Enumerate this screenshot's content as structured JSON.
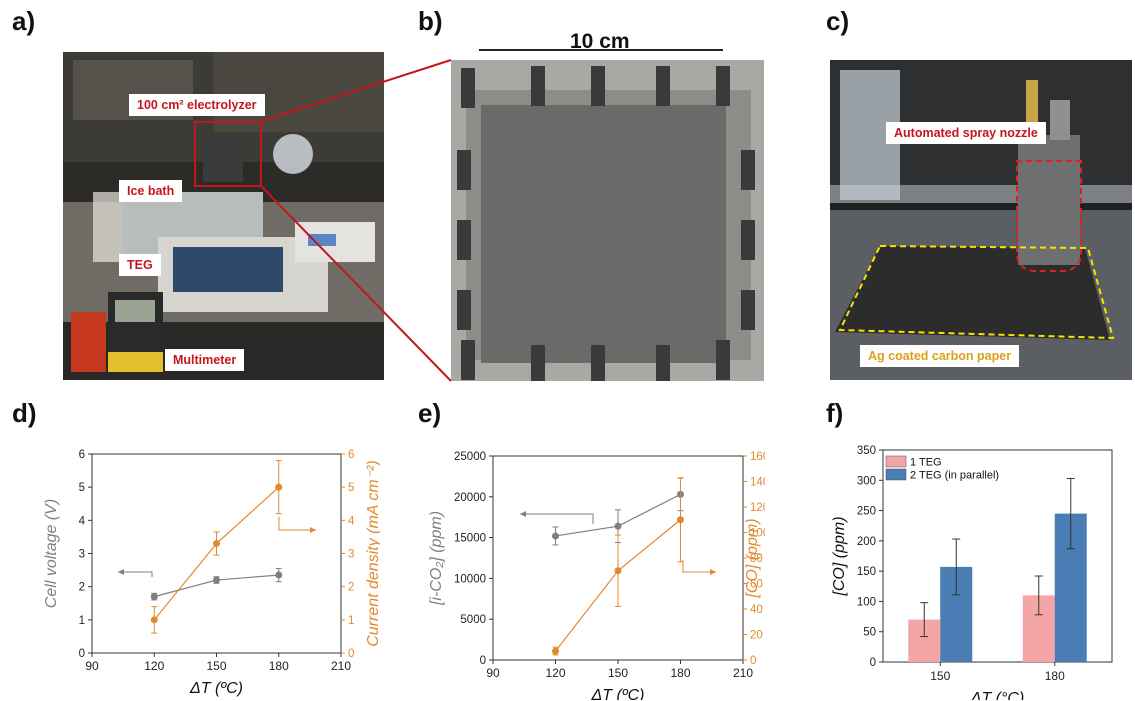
{
  "figure": {
    "panel_labels": [
      "a)",
      "b)",
      "c)",
      "d)",
      "e)",
      "f)"
    ],
    "colors": {
      "annotation_red": "#c4161c",
      "gray_series": "#7f7f7f",
      "orange_series": "#e08a2c",
      "bar_pink": "#f4a6a6",
      "bar_blue": "#4a7db4",
      "nozzle_outline": "#e02020",
      "paper_outline": "#f4e400"
    }
  },
  "photo_a": {
    "labels": [
      "100 cm² electrolyzer",
      "Ice bath",
      "TEG",
      "Multimeter"
    ]
  },
  "photo_b": {
    "scale_bar_label": "10 cm"
  },
  "photo_c": {
    "labels": [
      "Automated spray nozzle",
      "Ag coated carbon paper"
    ]
  },
  "chart_data": [
    {
      "panel": "d)",
      "type": "line",
      "x": [
        120,
        150,
        180
      ],
      "xlabel": "ΔT (ºC)",
      "xlim": [
        90,
        210
      ],
      "x_ticks": [
        "90",
        "120",
        "150",
        "180",
        "210"
      ],
      "grid": false,
      "series": [
        {
          "axis": "left",
          "color": "#7f7f7f",
          "values": [
            1.7,
            2.2,
            2.35
          ],
          "errors": [
            0.1,
            0.1,
            0.2
          ]
        },
        {
          "axis": "right",
          "color": "#e08a2c",
          "values": [
            1.0,
            3.3,
            5.0
          ],
          "errors": [
            0.4,
            0.35,
            0.8
          ]
        }
      ],
      "ylabel_left": "Cell voltage (V)",
      "ylim_left": [
        0,
        6
      ],
      "y_ticks_left": [
        "0",
        "1",
        "2",
        "3",
        "4",
        "5",
        "6"
      ],
      "ylabel_right": "Current density (mA cm⁻²)",
      "ylim_right": [
        0,
        6
      ],
      "y_ticks_right": [
        "0",
        "1",
        "2",
        "3",
        "4",
        "5",
        "6"
      ]
    },
    {
      "panel": "e)",
      "type": "line",
      "x": [
        120,
        150,
        180
      ],
      "xlabel": "ΔT (ºC)",
      "xlim": [
        90,
        210
      ],
      "x_ticks": [
        "90",
        "120",
        "150",
        "180",
        "210"
      ],
      "grid": false,
      "series": [
        {
          "axis": "left",
          "color": "#7f7f7f",
          "values": [
            15200,
            16400,
            20300
          ],
          "errors": [
            1100,
            2000,
            2000
          ]
        },
        {
          "axis": "right",
          "color": "#e08a2c",
          "values": [
            7,
            70,
            110
          ],
          "errors": [
            3,
            28,
            33
          ]
        }
      ],
      "ylabel_left": "[i-CO₂] (ppm)",
      "ylim_left": [
        0,
        25000
      ],
      "y_ticks_left": [
        "0",
        "5000",
        "10000",
        "15000",
        "20000",
        "25000"
      ],
      "ylabel_right": "[CO] (ppm)",
      "ylim_right": [
        0,
        160
      ],
      "y_ticks_right": [
        "0",
        "20",
        "40",
        "60",
        "80",
        "100",
        "120",
        "140",
        "160"
      ]
    },
    {
      "panel": "f)",
      "type": "bar",
      "categories": [
        "150",
        "180"
      ],
      "xlabel": "ΔT (°C)",
      "ylabel": "[CO] (ppm)",
      "ylim": [
        0,
        350
      ],
      "y_ticks": [
        "0",
        "50",
        "100",
        "150",
        "200",
        "250",
        "300",
        "350"
      ],
      "legend": "top-left",
      "grid": false,
      "series": [
        {
          "name": "1 TEG",
          "color": "#f4a6a6",
          "values": [
            70,
            110
          ],
          "errors": [
            28,
            32
          ]
        },
        {
          "name": "2 TEG (in parallel)",
          "color": "#4a7db4",
          "values": [
            157,
            245
          ],
          "errors": [
            46,
            58
          ]
        }
      ]
    }
  ]
}
